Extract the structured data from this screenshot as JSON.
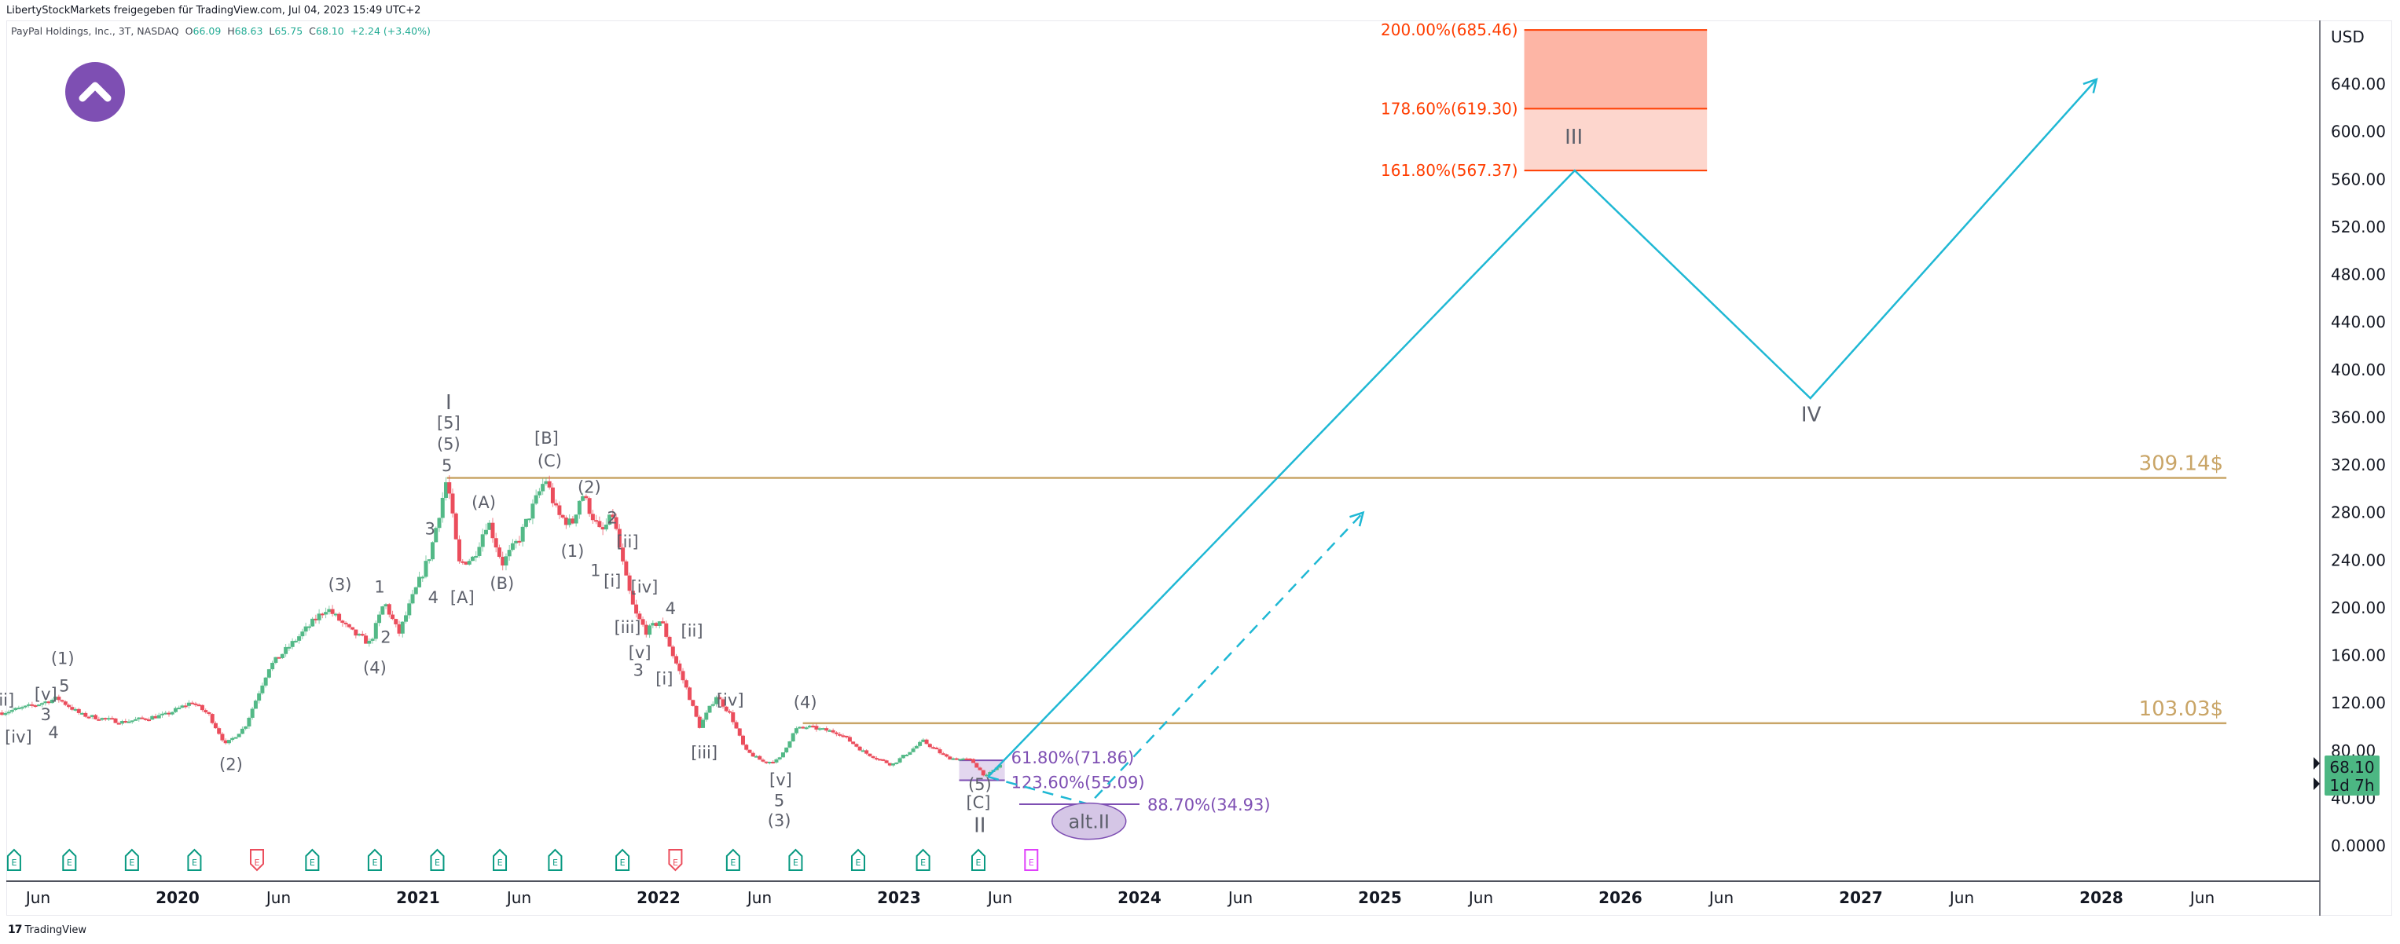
{
  "header": {
    "shared_by": "LibertyStockMarkets freigegeben für TradingView.com, Jul 04, 2023 15:49 UTC+2",
    "symbol": "PayPal Holdings, Inc., 3T, NASDAQ",
    "o_label": "O",
    "o": "66.09",
    "h_label": "H",
    "h": "68.63",
    "l_label": "L",
    "l": "65.75",
    "c_label": "C",
    "c": "68.10",
    "change": "+2.24 (+3.40%)"
  },
  "price_axis": {
    "currency": "USD",
    "ticks": [
      "640.00",
      "600.00",
      "560.00",
      "520.00",
      "480.00",
      "440.00",
      "400.00",
      "360.00",
      "320.00",
      "280.00",
      "240.00",
      "200.00",
      "160.00",
      "120.00",
      "80.00",
      "40.00",
      "0.0000"
    ],
    "tick_values": [
      640,
      600,
      560,
      520,
      480,
      440,
      400,
      360,
      320,
      280,
      240,
      200,
      160,
      120,
      80,
      40,
      0
    ],
    "last_price": "68.10",
    "countdown": "1d 7h"
  },
  "time_axis": {
    "labels": [
      "Jun",
      "2020",
      "Jun",
      "2021",
      "Jun",
      "2022",
      "Jun",
      "2023",
      "Jun",
      "2024",
      "Jun",
      "2025",
      "Jun",
      "2026",
      "Jun",
      "2027",
      "Jun",
      "2028",
      "Jun"
    ],
    "label_times": [
      2019.42,
      2020.0,
      2020.42,
      2021.0,
      2021.42,
      2022.0,
      2022.42,
      2023.0,
      2023.42,
      2024.0,
      2024.42,
      2025.0,
      2025.42,
      2026.0,
      2026.42,
      2027.0,
      2027.42,
      2028.0,
      2028.42
    ]
  },
  "footer": {
    "brand": "TradingView"
  },
  "colors": {
    "up": "#53b987",
    "down": "#eb4d5c",
    "fib": "#ff3d00",
    "fib_fill_top": "#fdb5a5",
    "fib_fill_bottom": "#fdd6cd",
    "level": "#c9a567",
    "projection": "#1fb8d4",
    "purple": "#7e4fb3",
    "purple_fill": "#e3d7ef",
    "label": "#5d606b",
    "badge": "#4cb783"
  },
  "chart_data": {
    "type": "candlestick",
    "symbol": "PYPL",
    "timeframe": "3T",
    "xrange": [
      2019.27,
      2028.7
    ],
    "ylim": [
      0,
      700
    ],
    "price_path": [
      [
        2019.27,
        112
      ],
      [
        2019.4,
        118
      ],
      [
        2019.5,
        124
      ],
      [
        2019.6,
        110
      ],
      [
        2019.77,
        104
      ],
      [
        2019.95,
        110
      ],
      [
        2020.06,
        121
      ],
      [
        2020.13,
        110
      ],
      [
        2020.2,
        85
      ],
      [
        2020.28,
        100
      ],
      [
        2020.38,
        150
      ],
      [
        2020.5,
        175
      ],
      [
        2020.62,
        200
      ],
      [
        2020.72,
        180
      ],
      [
        2020.8,
        170
      ],
      [
        2020.86,
        205
      ],
      [
        2020.92,
        178
      ],
      [
        2020.98,
        210
      ],
      [
        2021.05,
        245
      ],
      [
        2021.12,
        309
      ],
      [
        2021.17,
        237
      ],
      [
        2021.23,
        242
      ],
      [
        2021.29,
        274
      ],
      [
        2021.35,
        237
      ],
      [
        2021.42,
        258
      ],
      [
        2021.53,
        309
      ],
      [
        2021.58,
        278
      ],
      [
        2021.64,
        270
      ],
      [
        2021.68,
        297
      ],
      [
        2021.76,
        262
      ],
      [
        2021.81,
        278
      ],
      [
        2021.86,
        228
      ],
      [
        2021.9,
        196
      ],
      [
        2021.95,
        180
      ],
      [
        2022.01,
        190
      ],
      [
        2022.06,
        160
      ],
      [
        2022.12,
        130
      ],
      [
        2022.17,
        100
      ],
      [
        2022.24,
        126
      ],
      [
        2022.3,
        110
      ],
      [
        2022.36,
        80
      ],
      [
        2022.44,
        70
      ],
      [
        2022.5,
        72
      ],
      [
        2022.57,
        98
      ],
      [
        2022.62,
        100
      ],
      [
        2022.75,
        95
      ],
      [
        2022.86,
        78
      ],
      [
        2022.97,
        68
      ],
      [
        2023.1,
        88
      ],
      [
        2023.2,
        74
      ],
      [
        2023.3,
        72
      ],
      [
        2023.36,
        58
      ],
      [
        2023.42,
        68.1
      ]
    ],
    "levels": [
      {
        "label": "309.14$",
        "price": 309.14,
        "from": 2021.12,
        "to": 2028.52
      },
      {
        "label": "103.03$",
        "price": 103.03,
        "from": 2022.6,
        "to": 2028.52
      }
    ],
    "fib_target": {
      "from": 2025.6,
      "to": 2026.36,
      "levels": [
        {
          "label": "200.00%(685.46)",
          "price": 685.46
        },
        {
          "label": "178.60%(619.30)",
          "price": 619.3
        },
        {
          "label": "161.80%(567.37)",
          "price": 567.37
        }
      ]
    },
    "fib_support": {
      "from": 2023.25,
      "to": 2023.44,
      "levels": [
        {
          "label": "61.80%(71.86)",
          "price": 71.86
        },
        {
          "label": "123.60%(55.09)",
          "price": 55.09
        }
      ],
      "alt": {
        "label": "88.70%(34.93)",
        "price": 34.93,
        "from": 2023.5,
        "to": 2024.0
      }
    },
    "projection_main": [
      [
        2023.37,
        58
      ],
      [
        2025.81,
        567.37
      ],
      [
        2026.79,
        376
      ],
      [
        2027.98,
        644
      ]
    ],
    "projection_alt": [
      [
        2023.37,
        58
      ],
      [
        2023.79,
        34.93
      ],
      [
        2024.93,
        280
      ]
    ],
    "alt_marker": {
      "label": "alt.II",
      "t": 2023.79,
      "p": 22
    },
    "earnings": [
      {
        "t": 2019.32,
        "type": "past"
      },
      {
        "t": 2019.55,
        "type": "past"
      },
      {
        "t": 2019.81,
        "type": "past"
      },
      {
        "t": 2020.07,
        "type": "past"
      },
      {
        "t": 2020.33,
        "type": "negative"
      },
      {
        "t": 2020.56,
        "type": "past"
      },
      {
        "t": 2020.82,
        "type": "past"
      },
      {
        "t": 2021.08,
        "type": "past"
      },
      {
        "t": 2021.34,
        "type": "past"
      },
      {
        "t": 2021.57,
        "type": "past"
      },
      {
        "t": 2021.85,
        "type": "past"
      },
      {
        "t": 2022.07,
        "type": "negative"
      },
      {
        "t": 2022.31,
        "type": "past"
      },
      {
        "t": 2022.57,
        "type": "past"
      },
      {
        "t": 2022.83,
        "type": "past"
      },
      {
        "t": 2023.1,
        "type": "past"
      },
      {
        "t": 2023.33,
        "type": "past"
      },
      {
        "t": 2023.55,
        "type": "upcoming"
      }
    ],
    "earnings_letter": "E",
    "wave_labels": [
      {
        "text": "[ii]",
        "t": 2019.275,
        "p": 123
      },
      {
        "text": "[iv]",
        "t": 2019.338,
        "p": 92
      },
      {
        "text": "[v]",
        "t": 2019.452,
        "p": 128
      },
      {
        "text": "3",
        "t": 2019.452,
        "p": 134
      },
      {
        "text": "(1)",
        "t": 2019.522,
        "p": 158
      },
      {
        "text": "5",
        "t": 2019.529,
        "p": 135
      },
      {
        "text": "4",
        "t": 2019.484,
        "p": 99
      },
      {
        "text": "(2)",
        "t": 2020.222,
        "p": 69
      },
      {
        "text": "(3)",
        "t": 2020.675,
        "p": 220
      },
      {
        "text": "1",
        "t": 2020.84,
        "p": 218
      },
      {
        "text": "2",
        "t": 2020.866,
        "p": 176
      },
      {
        "text": "(4)",
        "t": 2020.82,
        "p": 150
      },
      {
        "text": "3",
        "t": 2021.05,
        "p": 267
      },
      {
        "text": "4",
        "t": 2021.063,
        "p": 209
      },
      {
        "text": "5",
        "t": 2021.12,
        "p": 320
      },
      {
        "text": "(5)",
        "t": 2021.127,
        "p": 338
      },
      {
        "text": "[5]",
        "t": 2021.127,
        "p": 356
      },
      {
        "text": "I",
        "t": 2021.127,
        "p": 372
      },
      {
        "text": "[A]",
        "t": 2021.184,
        "p": 209
      },
      {
        "text": "(A)",
        "t": 2021.273,
        "p": 289
      },
      {
        "text": "(B)",
        "t": 2021.349,
        "p": 221
      },
      {
        "text": "[B]",
        "t": 2021.534,
        "p": 343
      },
      {
        "text": "(C)",
        "t": 2021.547,
        "p": 324
      },
      {
        "text": "(2)",
        "t": 2021.712,
        "p": 302
      },
      {
        "text": "(1)",
        "t": 2021.642,
        "p": 248
      },
      {
        "text": "2",
        "t": 2021.808,
        "p": 276
      },
      {
        "text": "[ii]",
        "t": 2021.871,
        "p": 256
      },
      {
        "text": "1",
        "t": 2021.738,
        "p": 232
      },
      {
        "text": "[i]",
        "t": 2021.808,
        "p": 223
      },
      {
        "text": "[iv]",
        "t": 2021.941,
        "p": 218
      },
      {
        "text": "4",
        "t": 2022.05,
        "p": 200
      },
      {
        "text": "[iii]",
        "t": 2021.871,
        "p": 184
      },
      {
        "text": "[ii]",
        "t": 2022.139,
        "p": 181
      },
      {
        "text": "[v]",
        "t": 2021.922,
        "p": 163
      },
      {
        "text": "3",
        "t": 2021.916,
        "p": 148
      },
      {
        "text": "[i]",
        "t": 2022.024,
        "p": 141
      },
      {
        "text": "[iv]",
        "t": 2022.298,
        "p": 123
      },
      {
        "text": "[iii]",
        "t": 2022.19,
        "p": 79
      },
      {
        "text": "[v]",
        "t": 2022.508,
        "p": 56
      },
      {
        "text": "5",
        "t": 2022.502,
        "p": 42
      },
      {
        "text": "(3)",
        "t": 2022.502,
        "p": 25
      },
      {
        "text": "(4)",
        "t": 2022.61,
        "p": 121
      },
      {
        "text": "(5)",
        "t": 2023.336,
        "p": 52
      },
      {
        "text": "[C]",
        "t": 2023.33,
        "p": 37
      },
      {
        "text": "II",
        "t": 2023.336,
        "p": 20
      },
      {
        "text": "III",
        "t": 2025.806,
        "p": 595
      },
      {
        "text": "IV",
        "t": 2026.793,
        "p": 362
      }
    ]
  }
}
